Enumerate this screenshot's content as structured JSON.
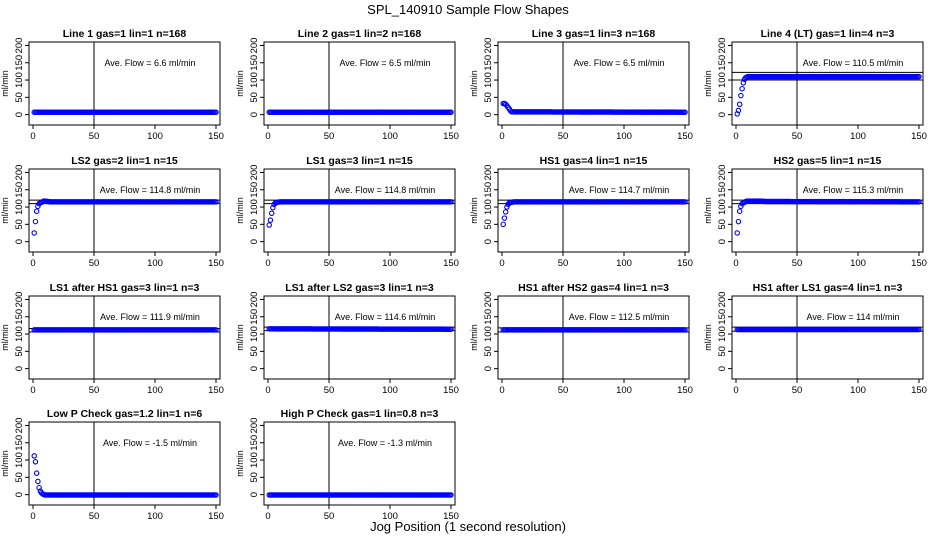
{
  "figure": {
    "title": "SPL_140910  Sample Flow Shapes",
    "xlabel": "Jog Position (1 second resolution)"
  },
  "chart_data": [
    {
      "type": "scatter",
      "title": "Line 1 gas=1 lin=1 n=168",
      "annotation": "Ave. Flow =  6.6  ml/min",
      "ylabel": "ml/min",
      "xlim": [
        0,
        150
      ],
      "ylim": [
        -30,
        210
      ],
      "xticks": [
        0,
        50,
        100,
        150
      ],
      "yticks": [
        0,
        50,
        100,
        150,
        200
      ],
      "vline": 50,
      "hlines": [],
      "color": "#0000ff",
      "series": [
        {
          "x": [
            1,
            150
          ],
          "y": [
            7,
            7
          ]
        }
      ]
    },
    {
      "type": "scatter",
      "title": "Line 2 gas=1 lin=2 n=168",
      "annotation": "Ave. Flow =  6.5  ml/min",
      "ylabel": "ml/min",
      "xlim": [
        0,
        150
      ],
      "ylim": [
        -30,
        210
      ],
      "xticks": [
        0,
        50,
        100,
        150
      ],
      "yticks": [
        0,
        50,
        100,
        150,
        200
      ],
      "vline": 50,
      "hlines": [],
      "color": "#0000ff",
      "series": [
        {
          "x": [
            1,
            150
          ],
          "y": [
            7,
            7
          ]
        }
      ]
    },
    {
      "type": "scatter",
      "title": "Line 3 gas=1 lin=3 n=168",
      "annotation": "Ave. Flow =  6.5  ml/min",
      "ylabel": "ml/min",
      "xlim": [
        0,
        150
      ],
      "ylim": [
        -30,
        210
      ],
      "xticks": [
        0,
        50,
        100,
        150
      ],
      "yticks": [
        0,
        50,
        100,
        150,
        200
      ],
      "vline": 50,
      "hlines": [],
      "color": "#0000ff",
      "series": [
        {
          "x": [
            1,
            2,
            3,
            4,
            5,
            6,
            7,
            8,
            150
          ],
          "y": [
            32,
            32,
            30,
            26,
            21,
            16,
            11,
            8,
            7
          ]
        }
      ]
    },
    {
      "type": "scatter",
      "title": "Line 4 (LT) gas=1 lin=4 n=3",
      "annotation": "Ave. Flow =  110.5  ml/min",
      "ylabel": "ml/min",
      "xlim": [
        0,
        150
      ],
      "ylim": [
        -30,
        210
      ],
      "xticks": [
        0,
        50,
        100,
        150
      ],
      "yticks": [
        0,
        50,
        100,
        150,
        200
      ],
      "vline": 50,
      "hlines": [
        100,
        122
      ],
      "color": "#0000ff",
      "series": [
        {
          "x": [
            1,
            2,
            3,
            4,
            5,
            6,
            7,
            8,
            9,
            10,
            12,
            150
          ],
          "y": [
            2,
            12,
            30,
            55,
            75,
            92,
            102,
            107,
            109,
            110,
            110,
            110
          ]
        }
      ]
    },
    {
      "type": "scatter",
      "title": "LS2 gas=2 lin=1 n=15",
      "annotation": "Ave. Flow =  114.8  ml/min",
      "ylabel": "ml/min",
      "xlim": [
        0,
        150
      ],
      "ylim": [
        -30,
        210
      ],
      "xticks": [
        0,
        50,
        100,
        150
      ],
      "yticks": [
        0,
        50,
        100,
        150,
        200
      ],
      "vline": 50,
      "hlines": [
        110,
        120
      ],
      "color": "#0000ff",
      "series": [
        {
          "x": [
            1,
            2,
            3,
            4,
            5,
            6,
            7,
            8,
            9,
            10,
            12,
            15,
            18,
            20,
            150
          ],
          "y": [
            25,
            58,
            88,
            102,
            110,
            112,
            114,
            116,
            117,
            117,
            116,
            115,
            115,
            115,
            115
          ]
        }
      ]
    },
    {
      "type": "scatter",
      "title": "LS1 gas=3 lin=1 n=15",
      "annotation": "Ave. Flow =  114.8  ml/min",
      "ylabel": "ml/min",
      "xlim": [
        0,
        150
      ],
      "ylim": [
        -30,
        210
      ],
      "xticks": [
        0,
        50,
        100,
        150
      ],
      "yticks": [
        0,
        50,
        100,
        150,
        200
      ],
      "vline": 50,
      "hlines": [
        110,
        120
      ],
      "color": "#0000ff",
      "series": [
        {
          "x": [
            1,
            2,
            3,
            4,
            5,
            6,
            8,
            10,
            150
          ],
          "y": [
            48,
            62,
            82,
            98,
            108,
            112,
            114,
            115,
            115
          ]
        }
      ]
    },
    {
      "type": "scatter",
      "title": "HS1 gas=4 lin=1 n=15",
      "annotation": "Ave. Flow =  114.7  ml/min",
      "ylabel": "ml/min",
      "xlim": [
        0,
        150
      ],
      "ylim": [
        -30,
        210
      ],
      "xticks": [
        0,
        50,
        100,
        150
      ],
      "yticks": [
        0,
        50,
        100,
        150,
        200
      ],
      "vline": 50,
      "hlines": [
        110,
        120
      ],
      "color": "#0000ff",
      "series": [
        {
          "x": [
            1,
            2,
            3,
            4,
            5,
            6,
            8,
            10,
            150
          ],
          "y": [
            50,
            68,
            86,
            100,
            108,
            112,
            114,
            115,
            115
          ]
        }
      ]
    },
    {
      "type": "scatter",
      "title": "HS2 gas=5 lin=1 n=15",
      "annotation": "Ave. Flow =  115.3  ml/min",
      "ylabel": "ml/min",
      "xlim": [
        0,
        150
      ],
      "ylim": [
        -30,
        210
      ],
      "xticks": [
        0,
        50,
        100,
        150
      ],
      "yticks": [
        0,
        50,
        100,
        150,
        200
      ],
      "vline": 50,
      "hlines": [
        110,
        120
      ],
      "color": "#0000ff",
      "series": [
        {
          "x": [
            1,
            2,
            3,
            4,
            5,
            6,
            7,
            8,
            9,
            10,
            12,
            15,
            20,
            25,
            150
          ],
          "y": [
            25,
            58,
            88,
            102,
            110,
            112,
            114,
            116,
            117,
            117,
            117,
            117,
            117,
            116,
            115
          ]
        }
      ]
    },
    {
      "type": "scatter",
      "title": "LS1 after HS1 gas=3 lin=1 n=3",
      "annotation": "Ave. Flow =  111.9  ml/min",
      "ylabel": "ml/min",
      "xlim": [
        0,
        150
      ],
      "ylim": [
        -30,
        210
      ],
      "xticks": [
        0,
        50,
        100,
        150
      ],
      "yticks": [
        0,
        50,
        100,
        150,
        200
      ],
      "vline": 50,
      "hlines": [
        106,
        116
      ],
      "color": "#0000ff",
      "series": [
        {
          "x": [
            1,
            150
          ],
          "y": [
            112,
            112
          ]
        }
      ]
    },
    {
      "type": "scatter",
      "title": "LS1 after LS2 gas=3 lin=1 n=3",
      "annotation": "Ave. Flow =  114.6  ml/min",
      "ylabel": "ml/min",
      "xlim": [
        0,
        150
      ],
      "ylim": [
        -30,
        210
      ],
      "xticks": [
        0,
        50,
        100,
        150
      ],
      "yticks": [
        0,
        50,
        100,
        150,
        200
      ],
      "vline": 50,
      "hlines": [
        110,
        120
      ],
      "color": "#0000ff",
      "series": [
        {
          "x": [
            1,
            150
          ],
          "y": [
            115,
            114
          ]
        }
      ]
    },
    {
      "type": "scatter",
      "title": "HS1 after HS2 gas=4 lin=1 n=3",
      "annotation": "Ave. Flow =  112.5  ml/min",
      "ylabel": "ml/min",
      "xlim": [
        0,
        150
      ],
      "ylim": [
        -30,
        210
      ],
      "xticks": [
        0,
        50,
        100,
        150
      ],
      "yticks": [
        0,
        50,
        100,
        150,
        200
      ],
      "vline": 50,
      "hlines": [
        106,
        118
      ],
      "color": "#0000ff",
      "series": [
        {
          "x": [
            1,
            150
          ],
          "y": [
            112,
            112
          ]
        }
      ]
    },
    {
      "type": "scatter",
      "title": "HS1 after LS1 gas=4 lin=1 n=3",
      "annotation": "Ave. Flow =  114  ml/min",
      "ylabel": "ml/min",
      "xlim": [
        0,
        150
      ],
      "ylim": [
        -30,
        210
      ],
      "xticks": [
        0,
        50,
        100,
        150
      ],
      "yticks": [
        0,
        50,
        100,
        150,
        200
      ],
      "vline": 50,
      "hlines": [
        108,
        120
      ],
      "color": "#0000ff",
      "series": [
        {
          "x": [
            1,
            150
          ],
          "y": [
            113,
            113
          ]
        }
      ]
    },
    {
      "type": "scatter",
      "title": "Low P Check gas=1.2 lin=1 n=6",
      "annotation": "Ave. Flow =  -1.5  ml/min",
      "ylabel": "ml/min",
      "xlim": [
        0,
        150
      ],
      "ylim": [
        -30,
        210
      ],
      "xticks": [
        0,
        50,
        100,
        150
      ],
      "yticks": [
        0,
        50,
        100,
        150,
        200
      ],
      "vline": 50,
      "hlines": [],
      "color": "#0000ff",
      "series": [
        {
          "x": [
            1,
            2,
            3,
            4,
            5,
            6,
            7,
            8,
            9,
            10,
            12,
            15,
            150
          ],
          "y": [
            112,
            95,
            62,
            38,
            20,
            10,
            5,
            2,
            0,
            -1,
            -1,
            -1,
            -1
          ]
        }
      ]
    },
    {
      "type": "scatter",
      "title": "High P Check gas=1 lin=0.8 n=3",
      "annotation": "Ave. Flow =  -1.3  ml/min",
      "ylabel": "ml/min",
      "xlim": [
        0,
        150
      ],
      "ylim": [
        -30,
        210
      ],
      "xticks": [
        0,
        50,
        100,
        150
      ],
      "yticks": [
        0,
        50,
        100,
        150,
        200
      ],
      "vline": 50,
      "hlines": [],
      "color": "#0000ff",
      "series": [
        {
          "x": [
            1,
            150
          ],
          "y": [
            -1,
            -1
          ]
        }
      ]
    }
  ]
}
